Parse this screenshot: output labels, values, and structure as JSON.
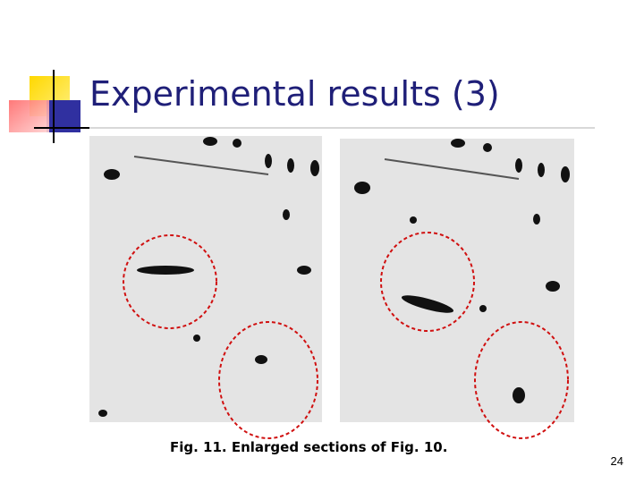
{
  "slide": {
    "title": "Experimental results (3)",
    "caption": "Fig. 11. Enlarged sections of Fig. 10.",
    "page_number": "24"
  }
}
